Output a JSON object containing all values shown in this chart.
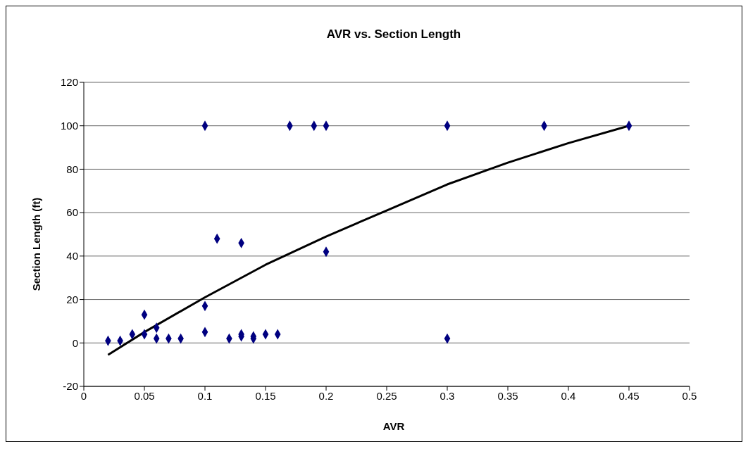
{
  "chart_data": {
    "type": "scatter",
    "title": "AVR vs. Section Length",
    "xlabel": "AVR",
    "ylabel": "Section Length (ft)",
    "xlim": [
      0,
      0.5
    ],
    "xticks": [
      0,
      0.05,
      0.1,
      0.15,
      0.2,
      0.25,
      0.3,
      0.35,
      0.4,
      0.45,
      0.5
    ],
    "ylim": [
      -20,
      120
    ],
    "yticks": [
      -20,
      0,
      20,
      40,
      60,
      80,
      100,
      120
    ],
    "grid": "y",
    "series": [
      {
        "color": "#000080",
        "marker": "diamond",
        "x": [
          0.02,
          0.03,
          0.04,
          0.05,
          0.05,
          0.06,
          0.06,
          0.07,
          0.08,
          0.1,
          0.1,
          0.1,
          0.11,
          0.12,
          0.13,
          0.13,
          0.13,
          0.14,
          0.14,
          0.15,
          0.16,
          0.17,
          0.19,
          0.2,
          0.2,
          0.3,
          0.3,
          0.38,
          0.45
        ],
        "values": [
          1,
          1,
          4,
          13,
          4,
          7,
          2,
          2,
          2,
          17,
          5,
          100,
          48,
          2,
          46,
          4,
          3,
          3,
          2,
          4,
          4,
          100,
          100,
          100,
          42,
          100,
          2,
          100,
          100
        ]
      },
      {
        "type": "line",
        "color": "#000000",
        "marker": "none",
        "x": [
          0.02,
          0.05,
          0.1,
          0.15,
          0.2,
          0.25,
          0.3,
          0.35,
          0.4,
          0.45
        ],
        "values": [
          -5.5,
          5,
          21,
          36,
          49,
          61,
          73,
          83,
          92,
          100
        ]
      }
    ]
  }
}
